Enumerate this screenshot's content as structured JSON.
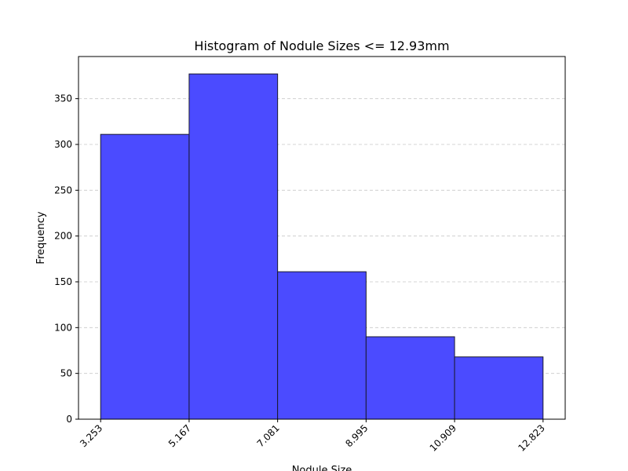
{
  "chart_data": {
    "type": "bar",
    "title": "Histogram of Nodule Sizes <= 12.93mm",
    "xlabel": "Nodule Size",
    "ylabel": "Frequency",
    "bin_edges": [
      3.253,
      5.167,
      7.081,
      8.995,
      10.909,
      12.823
    ],
    "x_tick_labels": [
      "3.253",
      "5.167",
      "7.081",
      "8.995",
      "10.909",
      "12.823"
    ],
    "values": [
      311,
      377,
      161,
      90,
      68
    ],
    "y_ticks": [
      0,
      50,
      100,
      150,
      200,
      250,
      300,
      350
    ],
    "xlim": [
      2.774,
      13.302
    ],
    "ylim": [
      0,
      396
    ],
    "grid": "y-dashed",
    "bar_color": "#4b4bff",
    "edge_color": "#1a1a2e",
    "grid_color": "#c8c8c8"
  }
}
